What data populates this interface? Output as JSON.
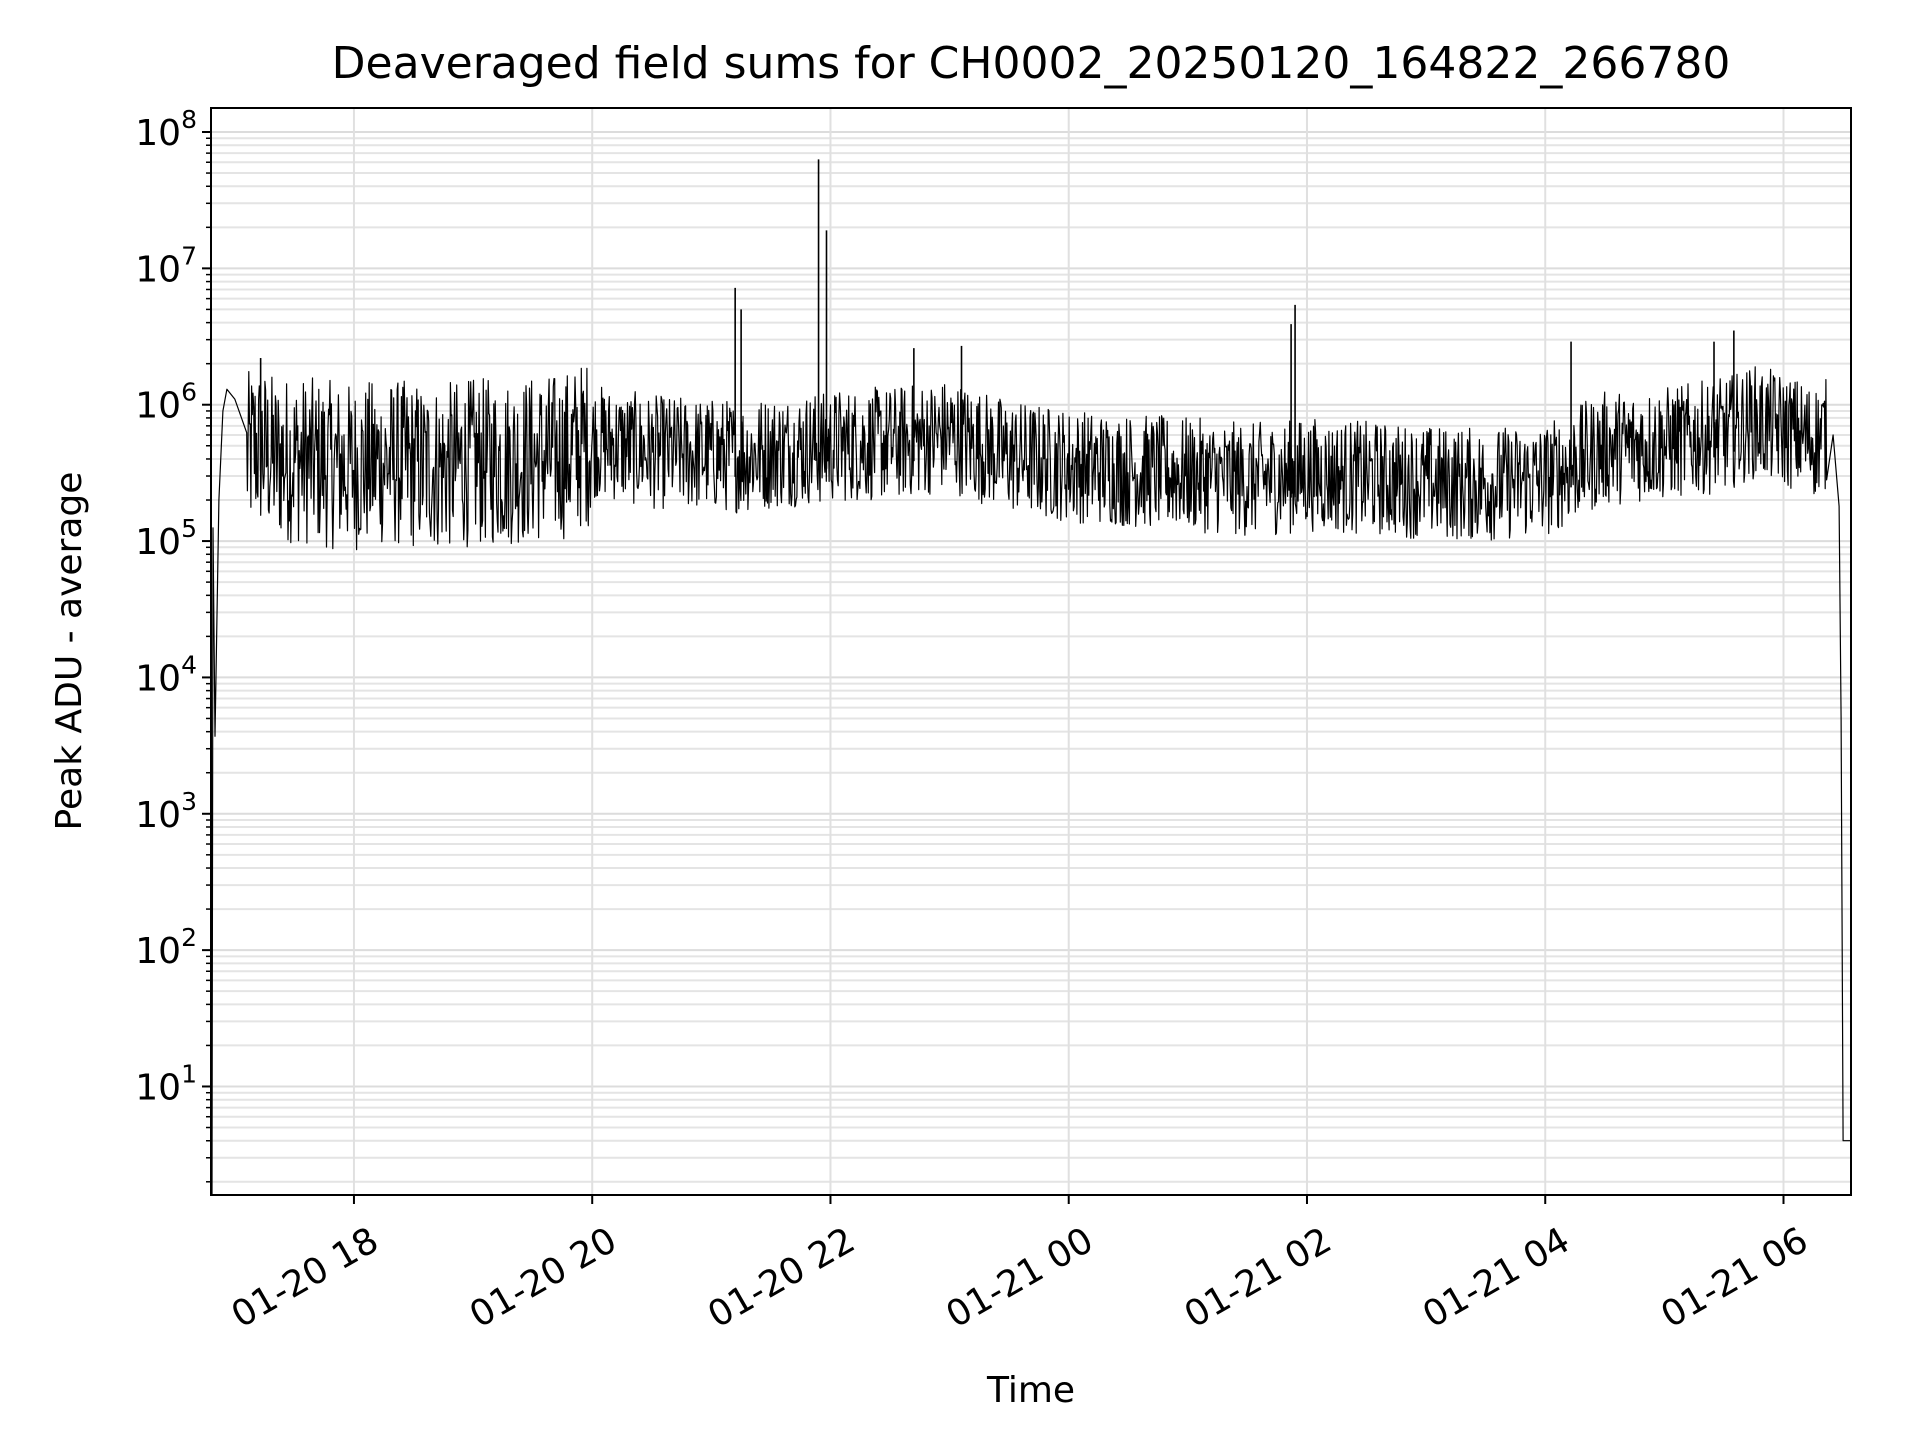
{
  "chart_data": {
    "type": "line",
    "title": "Deaveraged field sums for CH0002_20250120_164822_266780",
    "xlabel": "Time",
    "ylabel": "Peak ADU - average",
    "yscale": "log",
    "ylim": [
      1.6,
      150000000
    ],
    "xlim": [
      "2025-01-20T16:48:00",
      "2025-01-21T06:34:00"
    ],
    "grid": true,
    "grid_minor": true,
    "legend": "none",
    "line_color": "#000000",
    "x_ticks": [
      {
        "value": "2025-01-20T18:00:00",
        "label": "01-20 18"
      },
      {
        "value": "2025-01-20T20:00:00",
        "label": "01-20 20"
      },
      {
        "value": "2025-01-20T22:00:00",
        "label": "01-20 22"
      },
      {
        "value": "2025-01-21T00:00:00",
        "label": "01-21 00"
      },
      {
        "value": "2025-01-21T02:00:00",
        "label": "01-21 02"
      },
      {
        "value": "2025-01-21T04:00:00",
        "label": "01-21 04"
      },
      {
        "value": "2025-01-21T06:00:00",
        "label": "01-21 06"
      }
    ],
    "y_ticks": [
      {
        "value": 10,
        "base": "10",
        "exp": "1"
      },
      {
        "value": 100,
        "base": "10",
        "exp": "2"
      },
      {
        "value": 1000,
        "base": "10",
        "exp": "3"
      },
      {
        "value": 10000,
        "base": "10",
        "exp": "4"
      },
      {
        "value": 100000,
        "base": "10",
        "exp": "5"
      },
      {
        "value": 1000000,
        "base": "10",
        "exp": "6"
      },
      {
        "value": 10000000,
        "base": "10",
        "exp": "7"
      },
      {
        "value": 100000000,
        "base": "10",
        "exp": "8"
      }
    ],
    "series": [
      {
        "x": [
          "2025-01-20T16:48:30",
          "2025-01-20T16:49:00",
          "2025-01-20T16:50:00",
          "2025-01-20T16:52:00",
          "2025-01-20T16:54:00",
          "2025-01-20T16:56:00",
          "2025-01-20T17:00:00",
          "2025-01-20T17:03:00",
          "2025-01-20T17:06:00",
          "2025-01-20T17:10:00",
          "2025-01-20T17:15:00",
          "2025-01-20T17:20:00",
          "2025-01-20T17:30:00",
          "2025-01-20T17:40:00",
          "2025-01-20T17:50:00",
          "2025-01-20T18:00:00",
          "2025-01-20T18:15:00",
          "2025-01-20T18:30:00",
          "2025-01-20T18:45:00",
          "2025-01-20T19:00:00",
          "2025-01-20T19:15:00",
          "2025-01-20T19:30:00",
          "2025-01-20T19:45:00",
          "2025-01-20T20:00:00",
          "2025-01-20T20:30:00",
          "2025-01-20T21:00:00",
          "2025-01-20T21:15:00",
          "2025-01-20T21:30:00",
          "2025-01-20T21:50:00",
          "2025-01-20T21:56:00",
          "2025-01-20T22:00:00",
          "2025-01-20T22:30:00",
          "2025-01-20T23:00:00",
          "2025-01-20T23:15:00",
          "2025-01-20T23:30:00",
          "2025-01-21T00:00:00",
          "2025-01-21T00:30:00",
          "2025-01-21T01:00:00",
          "2025-01-21T01:30:00",
          "2025-01-21T01:55:00",
          "2025-01-21T02:00:00",
          "2025-01-21T02:30:00",
          "2025-01-21T03:00:00",
          "2025-01-21T03:30:00",
          "2025-01-21T04:00:00",
          "2025-01-21T04:30:00",
          "2025-01-21T05:00:00",
          "2025-01-21T05:30:00",
          "2025-01-21T05:45:00",
          "2025-01-21T06:00:00",
          "2025-01-21T06:15:00",
          "2025-01-21T06:22:00",
          "2025-01-21T06:25:00",
          "2025-01-21T06:28:00",
          "2025-01-21T06:29:00",
          "2025-01-21T06:30:00",
          "2025-01-21T06:34:00"
        ],
        "y": [
          1.6,
          125000,
          3700,
          200000,
          900000,
          1300000,
          1100000,
          600000,
          400000,
          500000,
          450000,
          400000,
          400000,
          380000,
          360000,
          350000,
          380000,
          360000,
          350000,
          380000,
          380000,
          400000,
          420000,
          550000,
          450000,
          430000,
          420000,
          450000,
          480000,
          470000,
          500000,
          520000,
          600000,
          500000,
          420000,
          360000,
          330000,
          310000,
          280000,
          300000,
          310000,
          290000,
          270000,
          260000,
          280000,
          480000,
          520000,
          600000,
          750000,
          650000,
          550000,
          600000,
          600000,
          180000,
          5000,
          4,
          4
        ]
      }
    ],
    "spikes": [
      {
        "x": "2025-01-20T17:13:00",
        "y": 2200000
      },
      {
        "x": "2025-01-20T21:12:00",
        "y": 7200000
      },
      {
        "x": "2025-01-20T21:15:00",
        "y": 5000000
      },
      {
        "x": "2025-01-20T21:54:00",
        "y": 63000000
      },
      {
        "x": "2025-01-20T21:58:00",
        "y": 19000000
      },
      {
        "x": "2025-01-20T22:42:00",
        "y": 2600000
      },
      {
        "x": "2025-01-20T23:06:00",
        "y": 2700000
      },
      {
        "x": "2025-01-21T01:54:00",
        "y": 5400000
      },
      {
        "x": "2025-01-21T01:52:00",
        "y": 3900000
      },
      {
        "x": "2025-01-21T04:13:00",
        "y": 2900000
      },
      {
        "x": "2025-01-21T05:35:00",
        "y": 3500000
      },
      {
        "x": "2025-01-21T05:25:00",
        "y": 2900000
      }
    ]
  }
}
